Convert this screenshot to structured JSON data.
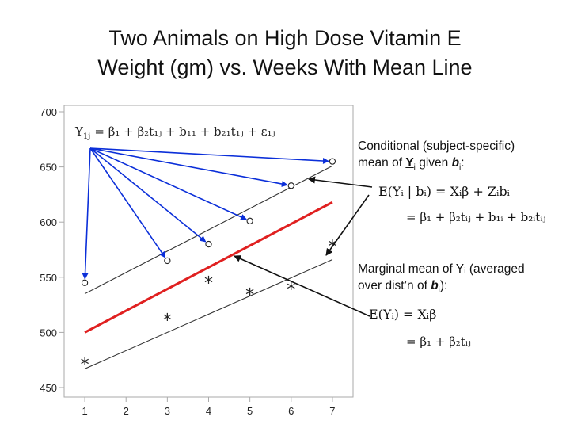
{
  "title": {
    "line1": "Two Animals on High Dose Vitamin E",
    "line2": "Weight (gm) vs. Weeks With Mean Line"
  },
  "colors": {
    "mean_line": "#e02020",
    "subject_line": "#333333",
    "arrow": "#0b2fd9",
    "axis": "#aaaaaa"
  },
  "chart_data": {
    "type": "scatter",
    "xlabel": "",
    "ylabel": "",
    "xlim": [
      0.5,
      7.5
    ],
    "ylim": [
      450,
      700
    ],
    "xticks": [
      1,
      2,
      3,
      4,
      5,
      6,
      7
    ],
    "yticks": [
      450,
      500,
      550,
      600,
      650,
      700
    ],
    "grid": false,
    "series": [
      {
        "marker": "circle",
        "points": [
          [
            1,
            545
          ],
          [
            3,
            565
          ],
          [
            4,
            580
          ],
          [
            5,
            601
          ],
          [
            6,
            633
          ],
          [
            7,
            655
          ]
        ]
      },
      {
        "marker": "star",
        "points": [
          [
            1,
            472
          ],
          [
            3,
            512
          ],
          [
            4,
            546
          ],
          [
            5,
            535
          ],
          [
            6,
            540
          ],
          [
            7,
            579
          ]
        ]
      }
    ],
    "lines": [
      {
        "role": "mean",
        "x": [
          1,
          7
        ],
        "y": [
          500,
          618
        ]
      },
      {
        "role": "subject-1",
        "x": [
          1,
          7
        ],
        "y": [
          535,
          651
        ]
      },
      {
        "role": "subject-2",
        "x": [
          1,
          7
        ],
        "y": [
          467,
          566
        ]
      }
    ],
    "arrows_from_label": [
      [
        1,
        545
      ],
      [
        3,
        565
      ],
      [
        4,
        580
      ],
      [
        5,
        601
      ],
      [
        6,
        633
      ],
      [
        7,
        655
      ]
    ]
  },
  "chart_labels": {
    "model_lhs": "Y",
    "model_lhs_sub": "1j",
    "model_rhs": "= β₁ + β₂t₁ⱼ + b₁₁ + b₂₁t₁ⱼ + ε₁ⱼ"
  },
  "conditional": {
    "text1": "Conditional (subject-specific)",
    "text2a": "mean of ",
    "text2_y": "Y",
    "text2_i": "i",
    "text2b": " given ",
    "text2_b": "b",
    "text2_bi": "i",
    "text2c": ":",
    "eq1": "E(Yᵢ | bᵢ) = Xᵢβ + Zᵢbᵢ",
    "eq2": "= β₁ + β₂tᵢⱼ + b₁ᵢ + b₂ᵢtᵢⱼ"
  },
  "marginal": {
    "text1": "Marginal mean of Yᵢ (averaged",
    "text2a": "over dist’n of ",
    "text2_b": "b",
    "text2_bi": "i",
    "text2c": "):",
    "eq1": "E(Yᵢ) = Xᵢβ",
    "eq2": "= β₁ + β₂tᵢⱼ"
  }
}
